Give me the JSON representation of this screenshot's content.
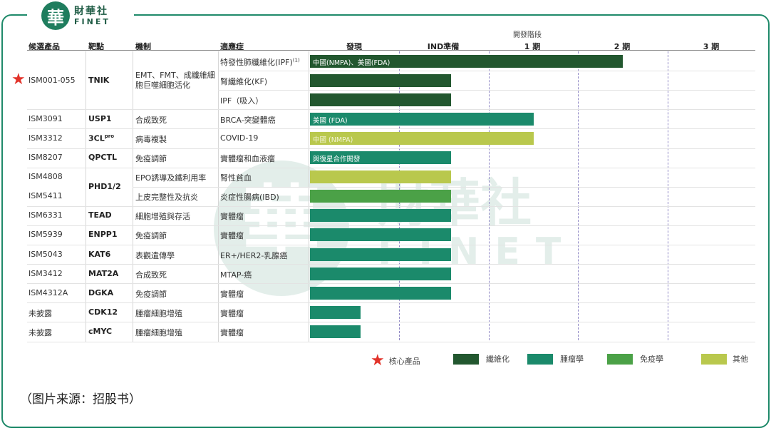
{
  "brand": {
    "logo_glyph": "華",
    "name_cn": "財華社",
    "name_en": "FINET"
  },
  "columns": {
    "candidate": "候選產品",
    "target": "靶點",
    "mechanism": "機制",
    "indication": "適應症"
  },
  "phases_title": "開發階段",
  "phases": [
    "發現",
    "IND準備",
    "1 期",
    "2 期",
    "3 期"
  ],
  "chart_data": {
    "type": "bar",
    "orientation": "horizontal",
    "xlabel": "開發階段",
    "categories": [
      "發現",
      "IND準備",
      "1 期",
      "2 期",
      "3 期"
    ],
    "scale_note": "progress in phase units; 0 = start of 發現, 5 = end of 3 期",
    "rows": [
      {
        "candidate": "ISM001-055",
        "target": "TNIK",
        "mechanism": "EMT、FMT、成纖維細胞巨噬細胞活化",
        "indication": "特發性肺纖維化(IPF)",
        "indication_sup": "(1)",
        "category": "纖維化",
        "progress": 3.5,
        "label": "中國(NMPA)、美國(FDA)",
        "core": true
      },
      {
        "candidate": "ISM001-055",
        "target": "TNIK",
        "mechanism": "EMT、FMT、成纖維細胞巨噬細胞活化",
        "indication": "腎纖維化(KF)",
        "category": "纖維化",
        "progress": 1.58,
        "label": "",
        "core": true
      },
      {
        "candidate": "ISM001-055",
        "target": "TNIK",
        "mechanism": "EMT、FMT、成纖維細胞巨噬細胞活化",
        "indication": "IPF（吸入）",
        "category": "纖維化",
        "progress": 1.58,
        "label": "",
        "core": true
      },
      {
        "candidate": "ISM3091",
        "target": "USP1",
        "mechanism": "合成致死",
        "indication": "BRCA-突變體癌",
        "category": "腫瘤學",
        "progress": 2.5,
        "label": "美國 (FDA)"
      },
      {
        "candidate": "ISM3312",
        "target": "3CL",
        "target_sup": "pro",
        "mechanism": "病毒複製",
        "indication": "COVID-19",
        "category": "其他",
        "progress": 2.5,
        "label": "中國 (NMPA)"
      },
      {
        "candidate": "ISM8207",
        "target": "QPCTL",
        "mechanism": "免疫調節",
        "indication": "實體瘤和血液瘤",
        "category": "腫瘤學",
        "progress": 1.58,
        "label": "與復星合作開發"
      },
      {
        "candidate": "ISM4808",
        "target": "PHD1/2",
        "mechanism": "EPO誘導及鐵利用率",
        "indication": "腎性貧血",
        "category": "其他",
        "progress": 1.58,
        "label": ""
      },
      {
        "candidate": "ISM5411",
        "target": "PHD1/2",
        "mechanism": "上皮完整性及抗炎",
        "indication": "炎症性腸病(IBD)",
        "category": "免疫學",
        "progress": 1.58,
        "label": ""
      },
      {
        "candidate": "ISM6331",
        "target": "TEAD",
        "mechanism": "細胞增殖與存活",
        "indication": "實體瘤",
        "category": "腫瘤學",
        "progress": 1.58,
        "label": ""
      },
      {
        "candidate": "ISM5939",
        "target": "ENPP1",
        "mechanism": "免疫調節",
        "indication": "實體瘤",
        "category": "腫瘤學",
        "progress": 1.58,
        "label": ""
      },
      {
        "candidate": "ISM5043",
        "target": "KAT6",
        "mechanism": "表觀遺傳學",
        "indication": "ER+/HER2-乳腺癌",
        "category": "腫瘤學",
        "progress": 1.58,
        "label": ""
      },
      {
        "candidate": "ISM3412",
        "target": "MAT2A",
        "mechanism": "合成致死",
        "indication": "MTAP-癌",
        "category": "腫瘤學",
        "progress": 1.58,
        "label": ""
      },
      {
        "candidate": "ISM4312A",
        "target": "DGKA",
        "mechanism": "免疫調節",
        "indication": "實體瘤",
        "category": "腫瘤學",
        "progress": 1.58,
        "label": ""
      },
      {
        "candidate": "未披露",
        "target": "CDK12",
        "mechanism": "腫瘤細胞增殖",
        "indication": "實體瘤",
        "category": "腫瘤學",
        "progress": 0.57,
        "label": ""
      },
      {
        "candidate": "未披露",
        "target": "cMYC",
        "mechanism": "腫瘤細胞增殖",
        "indication": "實體瘤",
        "category": "腫瘤學",
        "progress": 0.57,
        "label": ""
      }
    ],
    "legend": [
      {
        "name": "核心產品",
        "marker": "star",
        "color": "#e2332a"
      },
      {
        "name": "纖維化",
        "color": "#22572f"
      },
      {
        "name": "腫瘤學",
        "color": "#1b8a6b"
      },
      {
        "name": "免疫學",
        "color": "#4ba147"
      },
      {
        "name": "其他",
        "color": "#b9c84d"
      }
    ]
  },
  "source_note": "（图片来源：招股书）"
}
